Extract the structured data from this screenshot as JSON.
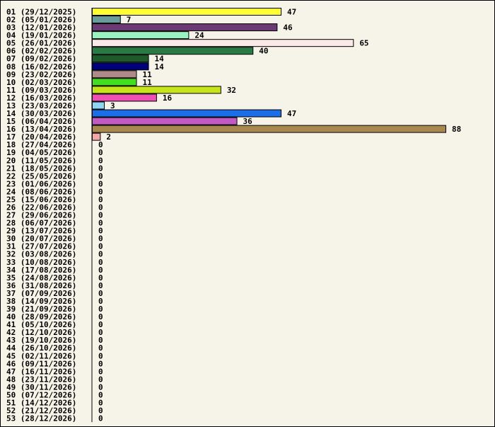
{
  "chart_data": {
    "type": "bar",
    "orientation": "horizontal",
    "title": "",
    "xlabel": "",
    "ylabel": "",
    "grid": false,
    "legend": "none",
    "background_color": "#f6f3e8",
    "xlim": [
      0,
      88
    ],
    "categories": [
      "01 (29/12/2025)",
      "02 (05/01/2026)",
      "03 (12/01/2026)",
      "04 (19/01/2026)",
      "05 (26/01/2026)",
      "06 (02/02/2026)",
      "07 (09/02/2026)",
      "08 (16/02/2026)",
      "09 (23/02/2026)",
      "10 (02/03/2026)",
      "11 (09/03/2026)",
      "12 (16/03/2026)",
      "13 (23/03/2026)",
      "14 (30/03/2026)",
      "15 (06/04/2026)",
      "16 (13/04/2026)",
      "17 (20/04/2026)",
      "18 (27/04/2026)",
      "19 (04/05/2026)",
      "20 (11/05/2026)",
      "21 (18/05/2026)",
      "22 (25/05/2026)",
      "23 (01/06/2026)",
      "24 (08/06/2026)",
      "25 (15/06/2026)",
      "26 (22/06/2026)",
      "27 (29/06/2026)",
      "28 (06/07/2026)",
      "29 (13/07/2026)",
      "30 (20/07/2026)",
      "31 (27/07/2026)",
      "32 (03/08/2026)",
      "33 (10/08/2026)",
      "34 (17/08/2026)",
      "35 (24/08/2026)",
      "36 (31/08/2026)",
      "37 (07/09/2026)",
      "38 (14/09/2026)",
      "39 (21/09/2026)",
      "40 (28/09/2026)",
      "41 (05/10/2026)",
      "42 (12/10/2026)",
      "43 (19/10/2026)",
      "44 (26/10/2026)",
      "45 (02/11/2026)",
      "46 (09/11/2026)",
      "47 (16/11/2026)",
      "48 (23/11/2026)",
      "49 (30/11/2026)",
      "50 (07/12/2026)",
      "51 (14/12/2026)",
      "52 (21/12/2026)",
      "53 (28/12/2026)"
    ],
    "values": [
      47,
      7,
      46,
      24,
      65,
      40,
      14,
      14,
      11,
      11,
      32,
      16,
      3,
      47,
      36,
      88,
      2,
      0,
      0,
      0,
      0,
      0,
      0,
      0,
      0,
      0,
      0,
      0,
      0,
      0,
      0,
      0,
      0,
      0,
      0,
      0,
      0,
      0,
      0,
      0,
      0,
      0,
      0,
      0,
      0,
      0,
      0,
      0,
      0,
      0,
      0,
      0,
      0
    ],
    "colors": [
      "#ffff33",
      "#6a9c9c",
      "#6b3a74",
      "#99f2c0",
      "#fbe9ea",
      "#2a7a46",
      "#1f5a2a",
      "#00007a",
      "#b08a88",
      "#44dd22",
      "#c6e41a",
      "#ee4fb3",
      "#8fd6f4",
      "#1a6ee8",
      "#c25ac4",
      "#a8884f",
      "#f2a6a8"
    ]
  }
}
